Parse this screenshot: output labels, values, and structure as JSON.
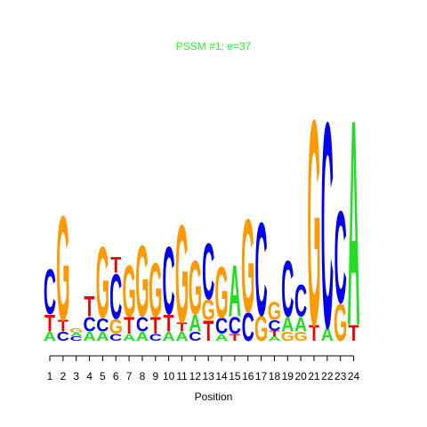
{
  "chart_data": {
    "type": "sequence-logo",
    "title": "PSSM #1; e=37",
    "title_color": "#33ee33",
    "xlabel": "Position",
    "ylabel": "",
    "ylim": [
      0,
      2
    ],
    "y_axis_shown": false,
    "grid": false,
    "base_colors": {
      "A": "#22dd22",
      "C": "#0000ee",
      "G": "#ff9900",
      "T": "#ee0000"
    },
    "positions": [
      {
        "pos": "1",
        "stack": [
          {
            "base": "A",
            "bits": 0.08
          },
          {
            "base": "T",
            "bits": 0.15
          },
          {
            "base": "C",
            "bits": 0.4
          }
        ]
      },
      {
        "pos": "2",
        "stack": [
          {
            "base": "C",
            "bits": 0.08
          },
          {
            "base": "T",
            "bits": 0.1
          },
          {
            "base": "G",
            "bits": 0.93
          }
        ]
      },
      {
        "pos": "3",
        "stack": [
          {
            "base": "C",
            "bits": 0.04
          },
          {
            "base": "A",
            "bits": 0.03
          },
          {
            "base": "G",
            "bits": 0.04
          }
        ]
      },
      {
        "pos": "4",
        "stack": [
          {
            "base": "A",
            "bits": 0.08
          },
          {
            "base": "C",
            "bits": 0.13
          },
          {
            "base": "T",
            "bits": 0.18
          }
        ]
      },
      {
        "pos": "5",
        "stack": [
          {
            "base": "A",
            "bits": 0.08
          },
          {
            "base": "C",
            "bits": 0.12
          },
          {
            "base": "G",
            "bits": 0.63
          }
        ]
      },
      {
        "pos": "6",
        "stack": [
          {
            "base": "C",
            "bits": 0.06
          },
          {
            "base": "G",
            "bits": 0.13
          },
          {
            "base": "C",
            "bits": 0.4
          },
          {
            "base": "T",
            "bits": 0.14
          }
        ]
      },
      {
        "pos": "7",
        "stack": [
          {
            "base": "A",
            "bits": 0.06
          },
          {
            "base": "T",
            "bits": 0.15
          },
          {
            "base": "G",
            "bits": 0.46
          }
        ]
      },
      {
        "pos": "8",
        "stack": [
          {
            "base": "A",
            "bits": 0.08
          },
          {
            "base": "C",
            "bits": 0.13
          },
          {
            "base": "G",
            "bits": 0.63
          }
        ]
      },
      {
        "pos": "9",
        "stack": [
          {
            "base": "C",
            "bits": 0.06
          },
          {
            "base": "T",
            "bits": 0.15
          },
          {
            "base": "G",
            "bits": 0.48
          }
        ]
      },
      {
        "pos": "10",
        "stack": [
          {
            "base": "A",
            "bits": 0.08
          },
          {
            "base": "T",
            "bits": 0.15
          },
          {
            "base": "C",
            "bits": 0.6
          }
        ]
      },
      {
        "pos": "11",
        "stack": [
          {
            "base": "A",
            "bits": 0.08
          },
          {
            "base": "T",
            "bits": 0.08
          },
          {
            "base": "G",
            "bits": 0.87
          }
        ]
      },
      {
        "pos": "12",
        "stack": [
          {
            "base": "C",
            "bits": 0.08
          },
          {
            "base": "A",
            "bits": 0.15
          },
          {
            "base": "G",
            "bits": 0.48
          }
        ]
      },
      {
        "pos": "13",
        "stack": [
          {
            "base": "T",
            "bits": 0.18
          },
          {
            "base": "G",
            "bits": 0.18
          },
          {
            "base": "C",
            "bits": 0.5
          }
        ]
      },
      {
        "pos": "14",
        "stack": [
          {
            "base": "A",
            "bits": 0.06
          },
          {
            "base": "C",
            "bits": 0.14
          },
          {
            "base": "G",
            "bits": 0.46
          }
        ]
      },
      {
        "pos": "15",
        "stack": [
          {
            "base": "T",
            "bits": 0.06
          },
          {
            "base": "C",
            "bits": 0.15
          },
          {
            "base": "A",
            "bits": 0.46
          }
        ]
      },
      {
        "pos": "16",
        "stack": [
          {
            "base": "C",
            "bits": 0.25
          },
          {
            "base": "G",
            "bits": 0.83
          }
        ]
      },
      {
        "pos": "17",
        "stack": [
          {
            "base": "G",
            "bits": 0.22
          },
          {
            "base": "C",
            "bits": 0.83
          }
        ]
      },
      {
        "pos": "18",
        "stack": [
          {
            "base": "A",
            "bits": 0.04
          },
          {
            "base": "T",
            "bits": 0.05
          },
          {
            "base": "C",
            "bits": 0.09
          },
          {
            "base": "G",
            "bits": 0.16
          }
        ]
      },
      {
        "pos": "19",
        "stack": [
          {
            "base": "G",
            "bits": 0.08
          },
          {
            "base": "A",
            "bits": 0.13
          },
          {
            "base": "C",
            "bits": 0.5
          }
        ]
      },
      {
        "pos": "20",
        "stack": [
          {
            "base": "G",
            "bits": 0.08
          },
          {
            "base": "A",
            "bits": 0.13
          },
          {
            "base": "C",
            "bits": 0.28
          }
        ]
      },
      {
        "pos": "21",
        "stack": [
          {
            "base": "T",
            "bits": 0.14
          },
          {
            "base": "G",
            "bits": 1.83
          }
        ]
      },
      {
        "pos": "22",
        "stack": [
          {
            "base": "A",
            "bits": 0.12
          },
          {
            "base": "C",
            "bits": 1.83
          }
        ]
      },
      {
        "pos": "23",
        "stack": [
          {
            "base": "G",
            "bits": 0.33
          },
          {
            "base": "C",
            "bits": 0.82
          }
        ]
      },
      {
        "pos": "24",
        "stack": [
          {
            "base": "T",
            "bits": 0.14
          },
          {
            "base": "A",
            "bits": 1.83
          }
        ]
      }
    ]
  }
}
